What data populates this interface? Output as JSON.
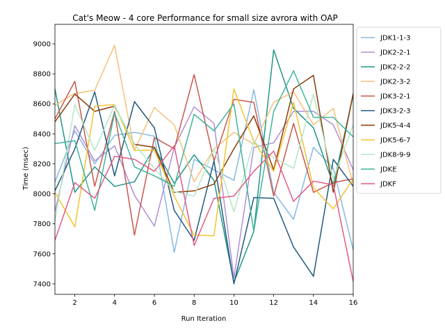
{
  "chart_data": {
    "type": "line",
    "title": "Cat's Meow - 4 core Performance for small size avrora with OAP",
    "xlabel": "Run Iteration",
    "ylabel": "Time (msec)",
    "xlim": [
      1,
      16
    ],
    "ylim": [
      7330,
      9130
    ],
    "xticks": [
      2,
      4,
      6,
      8,
      10,
      12,
      14,
      16
    ],
    "yticks": [
      7400,
      7600,
      7800,
      8000,
      8200,
      8400,
      8600,
      8800,
      9000
    ],
    "grid": false,
    "legend_position": "outside-right-top",
    "x": [
      1,
      2,
      3,
      4,
      5,
      6,
      7,
      8,
      9,
      10,
      11,
      12,
      13,
      14,
      15,
      16
    ],
    "series": [
      {
        "name": "JDK1-1-3",
        "color": "#85b9e2",
        "values": [
          8080,
          8420,
          8200,
          8390,
          8410,
          8385,
          7610,
          8230,
          8160,
          8090,
          8695,
          8010,
          7830,
          8310,
          8170,
          7625
        ]
      },
      {
        "name": "JDK2-2-1",
        "color": "#b18fd5",
        "values": [
          7880,
          8455,
          8220,
          8320,
          7990,
          7785,
          8310,
          8580,
          8470,
          7440,
          8310,
          8340,
          8550,
          8550,
          8460,
          8160
        ]
      },
      {
        "name": "JDK2-2-2",
        "color": "#1f9685",
        "values": [
          8700,
          8010,
          8180,
          8050,
          8080,
          8310,
          8070,
          8260,
          8090,
          7410,
          7750,
          8960,
          8570,
          8440,
          8060,
          8660
        ]
      },
      {
        "name": "JDK2-3-2",
        "color": "#f6c07a",
        "values": [
          8590,
          8670,
          8690,
          8990,
          8290,
          8575,
          8460,
          8080,
          8300,
          8410,
          8330,
          8610,
          8680,
          8460,
          8570,
          8060
        ]
      },
      {
        "name": "JDK3-2-1",
        "color": "#c8574d",
        "values": [
          8500,
          8750,
          8050,
          8550,
          7725,
          8375,
          8300,
          8795,
          8220,
          8630,
          8610,
          7985,
          8470,
          8010,
          8075,
          8100
        ]
      },
      {
        "name": "JDK3-2-3",
        "color": "#21587e",
        "values": [
          8020,
          8300,
          8680,
          8120,
          8615,
          8440,
          7890,
          7690,
          8220,
          7400,
          7975,
          7970,
          7645,
          7450,
          8230,
          8050
        ]
      },
      {
        "name": "JDK5-4-4",
        "color": "#8a3b09",
        "values": [
          8480,
          8665,
          8550,
          8585,
          8330,
          8310,
          8010,
          8020,
          8065,
          8300,
          8520,
          8160,
          8700,
          8790,
          8010,
          8670
        ]
      },
      {
        "name": "JDK5-6-7",
        "color": "#f3c330",
        "values": [
          8010,
          7780,
          8585,
          8595,
          8290,
          8290,
          7985,
          7725,
          7720,
          8700,
          8350,
          8150,
          8610,
          8040,
          7900,
          8100
        ]
      },
      {
        "name": "JDK8-9-9",
        "color": "#b3e8c6",
        "values": [
          7820,
          8595,
          8290,
          8590,
          8330,
          8170,
          8015,
          7985,
          8300,
          7880,
          8350,
          8240,
          8170,
          8665,
          8100,
          8460
        ]
      },
      {
        "name": "JDKE",
        "color": "#42b39c",
        "values": [
          8335,
          8355,
          7890,
          8540,
          8180,
          8120,
          8050,
          8530,
          8420,
          8600,
          7750,
          8550,
          8820,
          8510,
          8510,
          8380
        ]
      },
      {
        "name": "JDKF",
        "color": "#e45a84",
        "values": [
          7690,
          8075,
          7970,
          8250,
          8230,
          8150,
          8320,
          7655,
          7970,
          7985,
          8150,
          8285,
          7950,
          8085,
          8060,
          7415
        ]
      }
    ]
  }
}
